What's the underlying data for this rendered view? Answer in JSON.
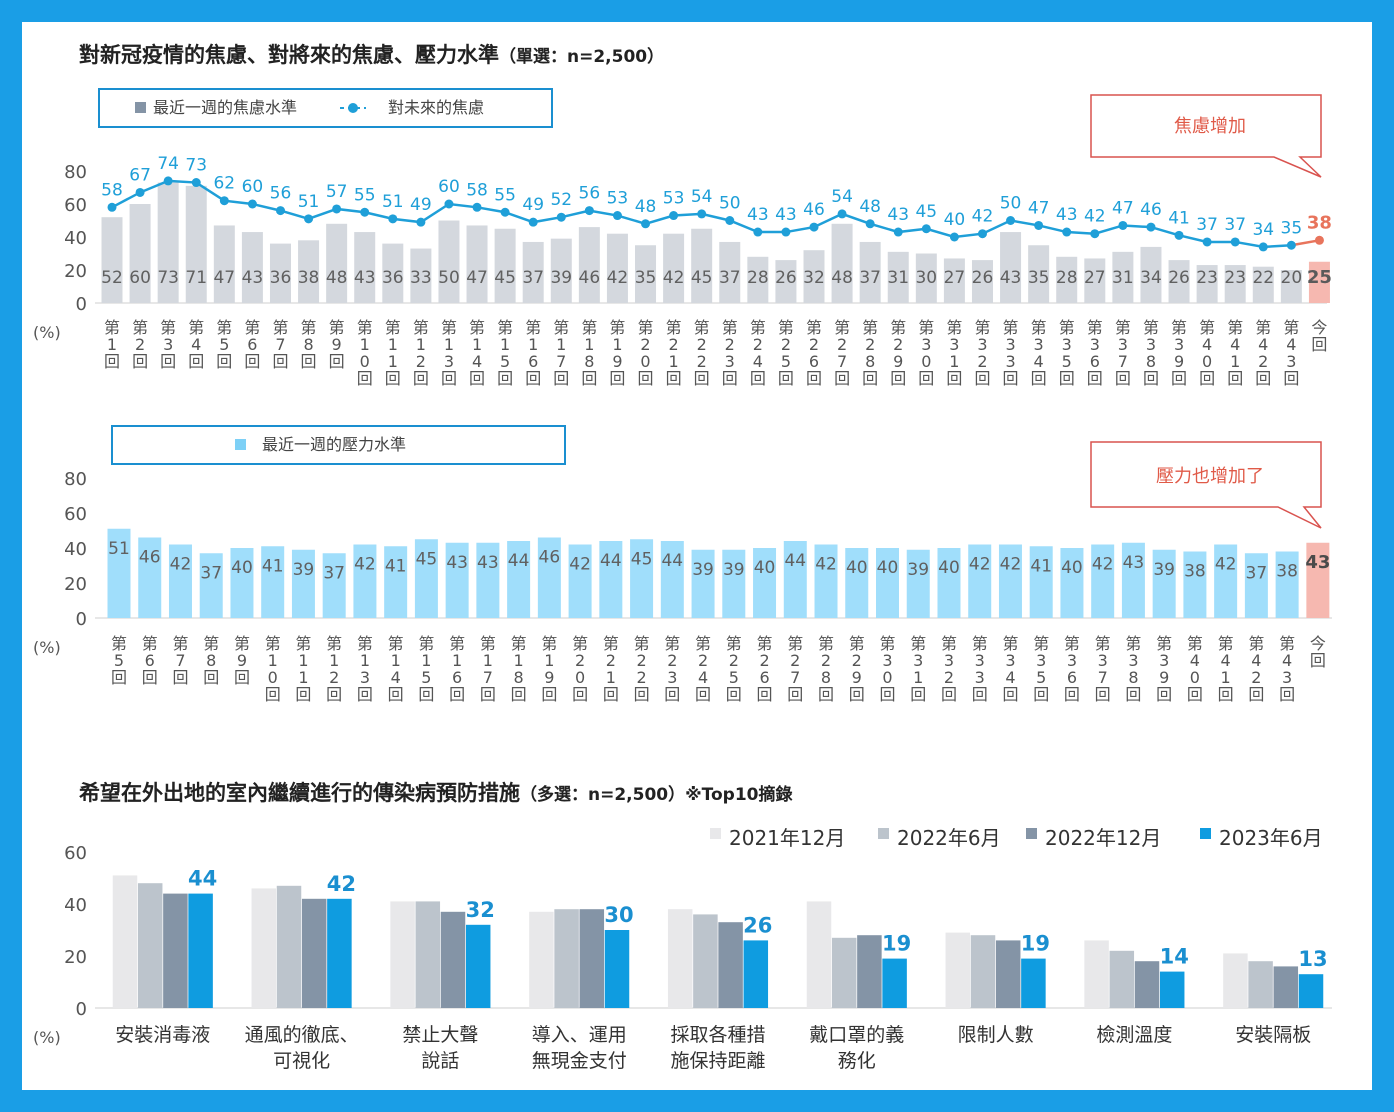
{
  "colors": {
    "frame": "#1a9ee6",
    "bar_gray": "#d4d8de",
    "bar_current_red": "#f6b8b0",
    "line_blue": "#1f9fd8",
    "label_gray": "#606060",
    "current_label_red": "#e8745c",
    "bar_stress": "#a0defb",
    "callout_border": "#d9534f",
    "callout_text": "#e05a48",
    "c2021_12": "#e8e8ea",
    "c2022_6": "#bcc4cc",
    "c2022_12": "#8494a6",
    "c2023_6": "#0f9ce0",
    "value_blue": "#1a8fd0"
  },
  "chart_data": [
    {
      "type": "bar",
      "title": "對新冠疫情的焦慮、對將來的焦慮、壓力水準",
      "title_note": "（單選：n=2,500）",
      "ylabel": "(%)",
      "ylim": [
        0,
        80
      ],
      "yticks": [
        "0",
        "20",
        "40",
        "60",
        "80"
      ],
      "categories": [
        "第1回",
        "第2回",
        "第3回",
        "第4回",
        "第5回",
        "第6回",
        "第7回",
        "第8回",
        "第9回",
        "第10回",
        "第11回",
        "第12回",
        "第13回",
        "第14回",
        "第15回",
        "第16回",
        "第17回",
        "第18回",
        "第19回",
        "第20回",
        "第21回",
        "第22回",
        "第23回",
        "第24回",
        "第25回",
        "第26回",
        "第27回",
        "第28回",
        "第29回",
        "第30回",
        "第31回",
        "第32回",
        "第33回",
        "第34回",
        "第35回",
        "第36回",
        "第37回",
        "第38回",
        "第39回",
        "第40回",
        "第41回",
        "第42回",
        "第43回",
        "今回"
      ],
      "series": [
        {
          "name": "最近一週的焦慮水準",
          "type": "bar",
          "values": [
            52,
            60,
            73,
            71,
            47,
            43,
            36,
            38,
            48,
            43,
            36,
            33,
            50,
            47,
            45,
            37,
            39,
            46,
            42,
            35,
            42,
            45,
            37,
            28,
            26,
            32,
            48,
            37,
            31,
            30,
            27,
            26,
            43,
            35,
            28,
            27,
            31,
            34,
            26,
            23,
            23,
            22,
            20,
            25
          ]
        },
        {
          "name": "對未來的焦慮",
          "type": "line",
          "values": [
            58,
            67,
            74,
            73,
            62,
            60,
            56,
            51,
            57,
            55,
            51,
            49,
            60,
            58,
            55,
            49,
            52,
            56,
            53,
            48,
            53,
            54,
            50,
            43,
            43,
            46,
            54,
            48,
            43,
            45,
            40,
            42,
            50,
            47,
            43,
            42,
            47,
            46,
            41,
            37,
            37,
            34,
            35,
            38
          ]
        }
      ],
      "legend": "top-left",
      "callout": "焦慮增加",
      "grid": false
    },
    {
      "type": "bar",
      "ylabel": "(%)",
      "ylim": [
        0,
        80
      ],
      "yticks": [
        "0",
        "20",
        "40",
        "60",
        "80"
      ],
      "categories": [
        "第5回",
        "第6回",
        "第7回",
        "第8回",
        "第9回",
        "第10回",
        "第11回",
        "第12回",
        "第13回",
        "第14回",
        "第15回",
        "第16回",
        "第17回",
        "第18回",
        "第19回",
        "第20回",
        "第21回",
        "第22回",
        "第23回",
        "第24回",
        "第25回",
        "第26回",
        "第27回",
        "第28回",
        "第29回",
        "第30回",
        "第31回",
        "第32回",
        "第33回",
        "第34回",
        "第35回",
        "第36回",
        "第37回",
        "第38回",
        "第39回",
        "第40回",
        "第41回",
        "第42回",
        "第43回",
        "今回"
      ],
      "series": [
        {
          "name": "最近一週的壓力水準",
          "type": "bar",
          "values": [
            51,
            46,
            42,
            37,
            40,
            41,
            39,
            37,
            42,
            41,
            45,
            43,
            43,
            44,
            46,
            42,
            44,
            45,
            44,
            39,
            39,
            40,
            44,
            42,
            40,
            40,
            39,
            40,
            42,
            42,
            41,
            40,
            42,
            43,
            39,
            38,
            42,
            37,
            38,
            43
          ]
        }
      ],
      "legend": "top-left",
      "callout": "壓力也增加了",
      "grid": false
    },
    {
      "type": "bar",
      "title": "希望在外出地的室內繼續進行的傳染病預防措施",
      "title_note": "（多選：n=2,500）※Top10摘錄",
      "ylabel": "(%)",
      "ylim": [
        0,
        60
      ],
      "yticks": [
        "0",
        "20",
        "40",
        "60"
      ],
      "categories": [
        "安裝消毒液",
        "通風的徹底、\n可視化",
        "禁止大聲\n說話",
        "導入、運用\n無現金支付",
        "採取各種措\n施保持距離",
        "戴口罩的義\n務化",
        "限制人數",
        "檢測溫度",
        "安裝隔板"
      ],
      "series": [
        {
          "name": "2021年12月",
          "values": [
            51,
            46,
            41,
            37,
            38,
            41,
            29,
            26,
            21
          ]
        },
        {
          "name": "2022年6月",
          "values": [
            48,
            47,
            41,
            38,
            36,
            27,
            28,
            22,
            18
          ]
        },
        {
          "name": "2022年12月",
          "values": [
            44,
            42,
            37,
            38,
            33,
            28,
            26,
            18,
            16
          ]
        },
        {
          "name": "2023年6月",
          "values": [
            44,
            42,
            32,
            30,
            26,
            19,
            19,
            14,
            13
          ],
          "labeled": true
        }
      ],
      "legend": "top-right",
      "grid": false
    }
  ]
}
